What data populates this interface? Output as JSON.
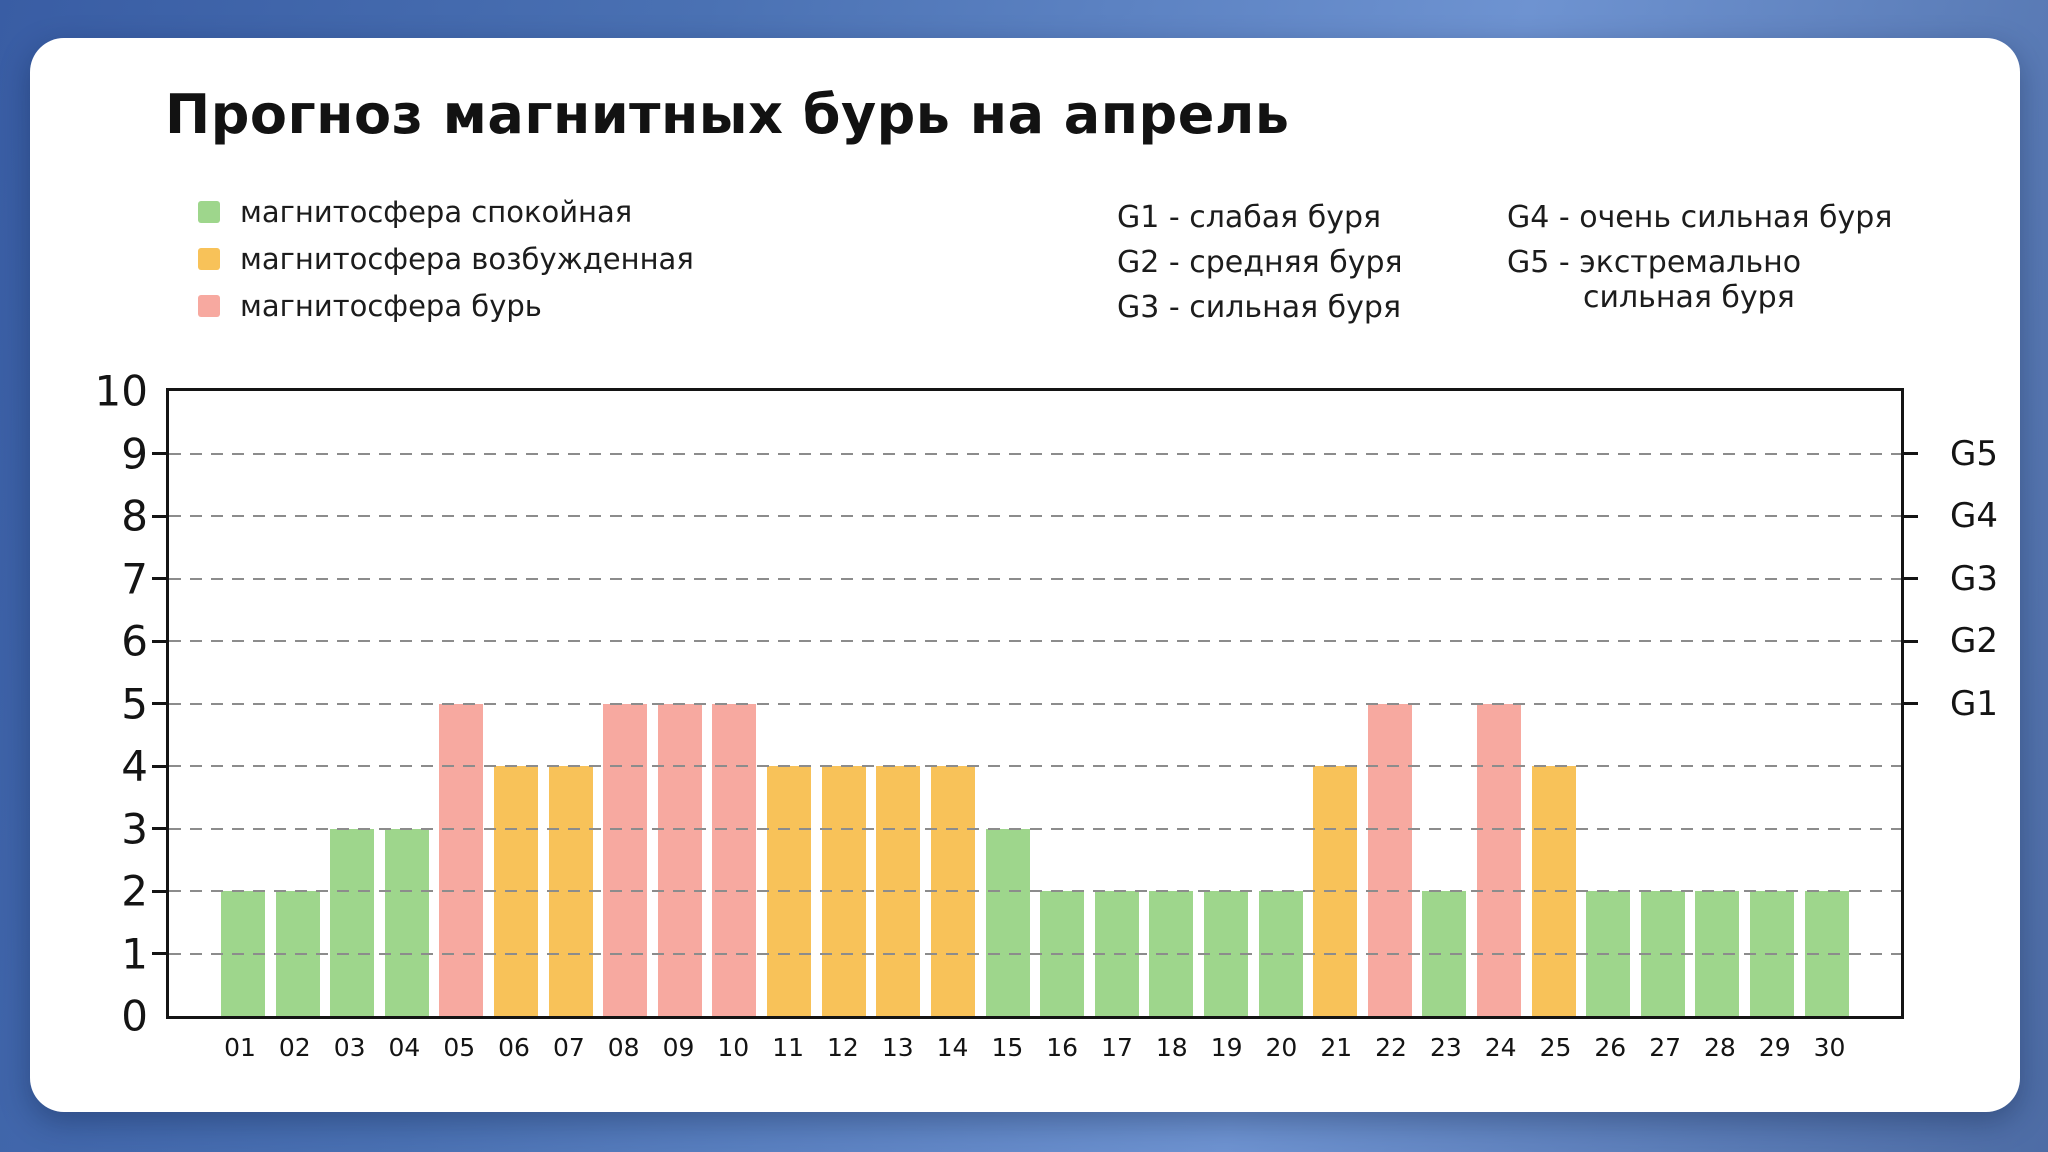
{
  "title": "Прогноз магнитных бурь на апрель",
  "legend": [
    {
      "label": "магнитосфера спокойная",
      "color": "#9ed68c",
      "status": "calm"
    },
    {
      "label": "магнитосфера возбужденная",
      "color": "#f8c259",
      "status": "excited"
    },
    {
      "label": "магнитосфера бурь",
      "color": "#f7a9a0",
      "status": "storm"
    }
  ],
  "storm_levels": {
    "g1": "G1 - слабая буря",
    "g2": "G2 - средняя буря",
    "g3": "G3 - сильная буря",
    "g4": "G4 - очень сильная буря",
    "g5_line1": "G5 - экстремально",
    "g5_line2": "сильная буря"
  },
  "chart_data": {
    "type": "bar",
    "title": "Прогноз магнитных бурь на апрель",
    "categories": [
      "01",
      "02",
      "03",
      "04",
      "05",
      "06",
      "07",
      "08",
      "09",
      "10",
      "11",
      "12",
      "13",
      "14",
      "15",
      "16",
      "17",
      "18",
      "19",
      "20",
      "21",
      "22",
      "23",
      "24",
      "25",
      "26",
      "27",
      "28",
      "29",
      "30"
    ],
    "values": [
      2,
      2,
      3,
      3,
      5,
      4,
      4,
      5,
      5,
      5,
      4,
      4,
      4,
      4,
      3,
      2,
      2,
      2,
      2,
      2,
      4,
      5,
      2,
      5,
      4,
      2,
      2,
      2,
      2,
      2
    ],
    "statuses": [
      "calm",
      "calm",
      "calm",
      "calm",
      "storm",
      "excited",
      "excited",
      "storm",
      "storm",
      "storm",
      "excited",
      "excited",
      "excited",
      "excited",
      "calm",
      "calm",
      "calm",
      "calm",
      "calm",
      "calm",
      "excited",
      "storm",
      "calm",
      "storm",
      "excited",
      "calm",
      "calm",
      "calm",
      "calm",
      "calm"
    ],
    "status_colors": {
      "calm": "#9ed68c",
      "excited": "#f8c259",
      "storm": "#f7a9a0"
    },
    "ylim": [
      0,
      10
    ],
    "yticks_left": [
      0,
      1,
      2,
      3,
      4,
      5,
      6,
      7,
      8,
      9,
      10
    ],
    "yticks_right": [
      {
        "label": "G5",
        "value": 9
      },
      {
        "label": "G4",
        "value": 8
      },
      {
        "label": "G3",
        "value": 7
      },
      {
        "label": "G2",
        "value": 6
      },
      {
        "label": "G1",
        "value": 5
      }
    ],
    "grid": "dashed horizontal lines at 1-9, drawn over bars",
    "legend_position": "top-left",
    "xlabel": "",
    "ylabel": ""
  },
  "colors": {
    "background_gradient": [
      "#395da4",
      "#6e93d1"
    ],
    "card": "#ffffff",
    "frame": "#141414",
    "gridline": "#8c8c8c"
  }
}
